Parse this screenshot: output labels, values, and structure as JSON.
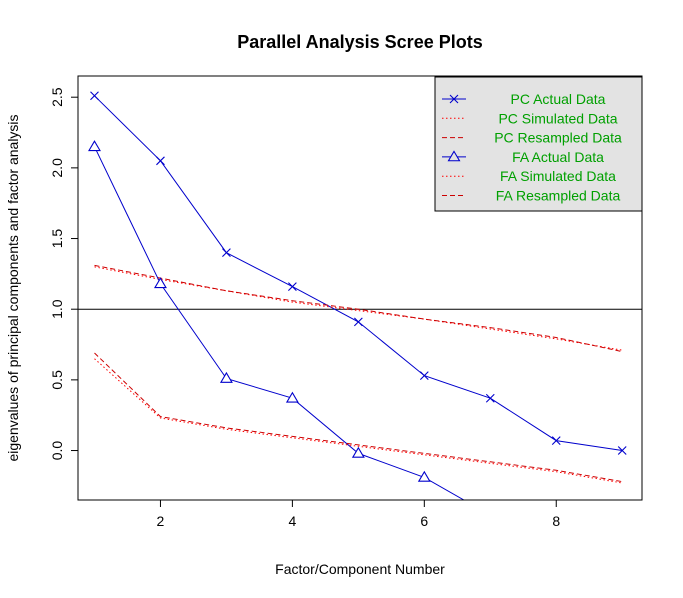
{
  "chart_data": {
    "type": "line",
    "title": "Parallel Analysis Scree Plots",
    "xlabel": "Factor/Component Number",
    "ylabel": "eigenvalues of principal components and factor analysis",
    "xlim": [
      0.75,
      9.3
    ],
    "ylim": [
      -0.35,
      2.65
    ],
    "x_ticks": [
      2,
      4,
      6,
      8
    ],
    "y_ticks": [
      0.0,
      0.5,
      1.0,
      1.5,
      2.0,
      2.5
    ],
    "reference_line": 1.0,
    "legend_position": "top-right",
    "series": [
      {
        "name": "PC  Actual Data",
        "color": "#0000cc",
        "line_style": "solid",
        "marker": "x",
        "x": [
          1,
          2,
          3,
          4,
          5,
          6,
          7,
          8,
          9
        ],
        "y": [
          2.51,
          2.05,
          1.4,
          1.16,
          0.91,
          0.53,
          0.37,
          0.07,
          0.0
        ]
      },
      {
        "name": "PC  Simulated Data",
        "color": "#ff0000",
        "line_style": "dotted",
        "marker": "none",
        "x": [
          1,
          2,
          3,
          4,
          5,
          6,
          7,
          8,
          9
        ],
        "y": [
          1.3,
          1.21,
          1.13,
          1.05,
          0.99,
          0.93,
          0.86,
          0.79,
          0.71
        ]
      },
      {
        "name": "PC  Resampled Data",
        "color": "#cc0000",
        "line_style": "dashed",
        "marker": "none",
        "x": [
          1,
          2,
          3,
          4,
          5,
          6,
          7,
          8,
          9
        ],
        "y": [
          1.31,
          1.22,
          1.13,
          1.06,
          1.0,
          0.93,
          0.87,
          0.8,
          0.7
        ]
      },
      {
        "name": "FA  Actual Data",
        "color": "#0000cc",
        "line_style": "solid",
        "marker": "triangle",
        "x": [
          1,
          2,
          3,
          4,
          5,
          6,
          6.6
        ],
        "y": [
          2.15,
          1.18,
          0.51,
          0.37,
          -0.02,
          -0.19,
          -0.35
        ],
        "marker_count": 6
      },
      {
        "name": "FA  Simulated Data",
        "color": "#ff0000",
        "line_style": "dotted",
        "marker": "none",
        "x": [
          1,
          2,
          3,
          4,
          5,
          6,
          7,
          8,
          9
        ],
        "y": [
          0.65,
          0.23,
          0.15,
          0.09,
          0.03,
          -0.03,
          -0.09,
          -0.15,
          -0.23
        ]
      },
      {
        "name": "FA  Resampled Data",
        "color": "#cc0000",
        "line_style": "dashed",
        "marker": "none",
        "x": [
          1,
          2,
          3,
          4,
          5,
          6,
          7,
          8,
          9
        ],
        "y": [
          0.69,
          0.24,
          0.16,
          0.1,
          0.04,
          -0.02,
          -0.08,
          -0.14,
          -0.22
        ]
      }
    ]
  }
}
